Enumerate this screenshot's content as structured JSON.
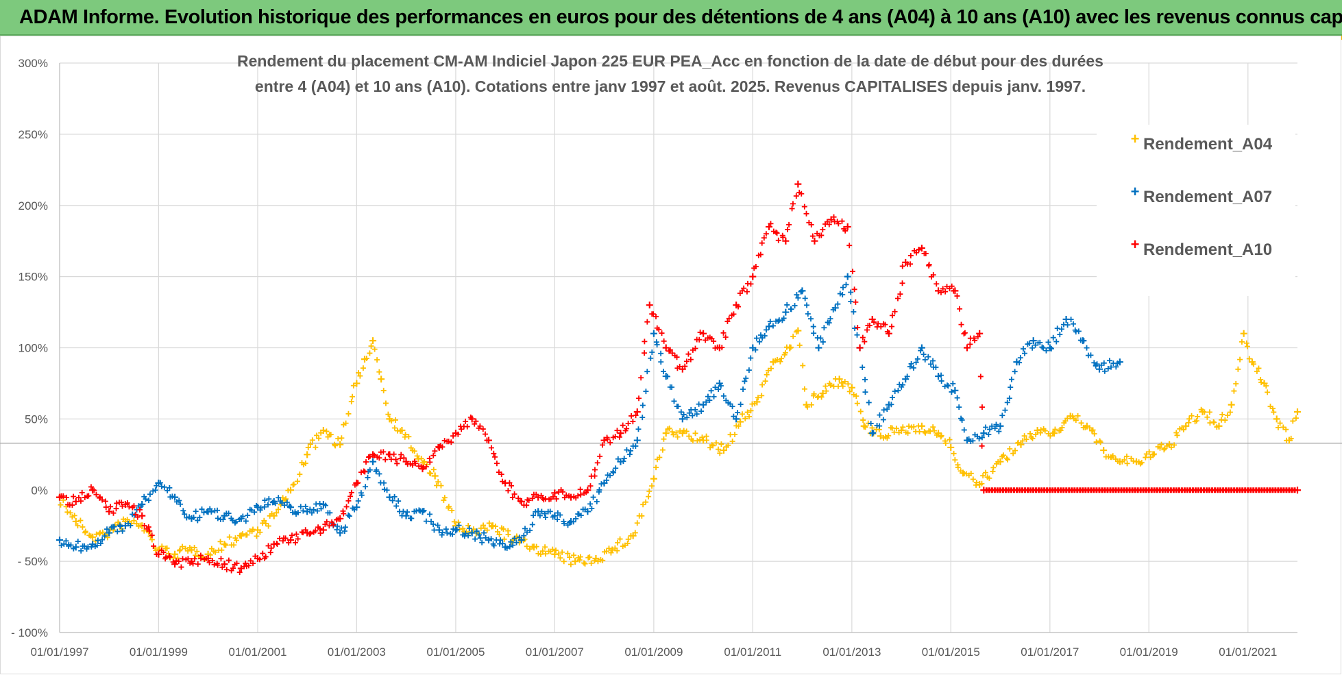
{
  "banner": {
    "title": "ADAM Informe. Evolution historique des performances en euros pour des détentions de 4 ans (A04) à 10 ans (A10) avec les revenus connus capitalisés"
  },
  "chart_data": {
    "type": "scatter",
    "title_lines": [
      "Rendement du placement CM-AM Indiciel Japon 225 EUR PEA_Acc en fonction de la date de début pour des durées",
      "entre 4 (A04) et 10 ans (A10). Cotations entre janv 1997 et août. 2025. Revenus CAPITALISES depuis janv. 1997."
    ],
    "x_tick_labels": [
      "01/01/1997",
      "01/01/1999",
      "01/01/2001",
      "01/01/2003",
      "01/01/2005",
      "01/01/2007",
      "01/01/2009",
      "01/01/2011",
      "01/01/2013",
      "01/01/2015",
      "01/01/2017",
      "01/01/2019",
      "01/01/2021"
    ],
    "xlim": [
      "1997-01-01",
      "2022-01-01"
    ],
    "y_tick_labels": [
      "300%",
      "250%",
      "200%",
      "150%",
      "100%",
      "50%",
      "0%",
      "- 50%",
      "- 100%"
    ],
    "y_ticks": [
      300,
      250,
      200,
      150,
      100,
      50,
      0,
      -50,
      -100
    ],
    "ylim": [
      -100,
      300
    ],
    "reference_line_y": 33,
    "grid": true,
    "legend_position": "top-right",
    "series": [
      {
        "name": "Rendement_A04",
        "color": "#ffc000",
        "points": [
          [
            "1997-01-01",
            -5
          ],
          [
            "1997-05-01",
            -22
          ],
          [
            "1997-09-01",
            -33
          ],
          [
            "1998-01-01",
            -30
          ],
          [
            "1998-05-01",
            -22
          ],
          [
            "1998-09-01",
            -25
          ],
          [
            "1999-01-01",
            -42
          ],
          [
            "1999-05-01",
            -45
          ],
          [
            "1999-09-01",
            -42
          ],
          [
            "2000-01-01",
            -45
          ],
          [
            "2000-05-01",
            -38
          ],
          [
            "2000-09-01",
            -32
          ],
          [
            "2001-01-01",
            -28
          ],
          [
            "2001-05-01",
            -18
          ],
          [
            "2001-09-01",
            0
          ],
          [
            "2002-01-01",
            25
          ],
          [
            "2002-05-01",
            42
          ],
          [
            "2002-09-01",
            32
          ],
          [
            "2003-01-01",
            75
          ],
          [
            "2003-03-01",
            92
          ],
          [
            "2003-05-01",
            105
          ],
          [
            "2003-07-01",
            78
          ],
          [
            "2003-09-01",
            50
          ],
          [
            "2003-12-01",
            42
          ],
          [
            "2004-04-01",
            22
          ],
          [
            "2004-08-01",
            10
          ],
          [
            "2005-01-01",
            -25
          ],
          [
            "2005-06-01",
            -30
          ],
          [
            "2005-10-01",
            -25
          ],
          [
            "2006-03-01",
            -35
          ],
          [
            "2006-08-01",
            -40
          ],
          [
            "2007-01-01",
            -45
          ],
          [
            "2007-06-01",
            -50
          ],
          [
            "2007-11-01",
            -48
          ],
          [
            "2008-03-01",
            -42
          ],
          [
            "2008-08-01",
            -32
          ],
          [
            "2009-01-01",
            8
          ],
          [
            "2009-04-01",
            40
          ],
          [
            "2009-08-01",
            40
          ],
          [
            "2010-01-01",
            35
          ],
          [
            "2010-06-01",
            28
          ],
          [
            "2010-10-01",
            48
          ],
          [
            "2011-02-01",
            62
          ],
          [
            "2011-06-01",
            90
          ],
          [
            "2011-10-01",
            100
          ],
          [
            "2011-12-01",
            112
          ],
          [
            "2012-02-01",
            60
          ],
          [
            "2012-06-01",
            68
          ],
          [
            "2012-10-01",
            78
          ],
          [
            "2013-01-01",
            72
          ],
          [
            "2013-04-01",
            45
          ],
          [
            "2013-08-01",
            38
          ],
          [
            "2014-01-01",
            42
          ],
          [
            "2014-06-01",
            45
          ],
          [
            "2014-10-01",
            40
          ],
          [
            "2015-01-01",
            30
          ],
          [
            "2015-04-01",
            12
          ],
          [
            "2015-08-01",
            4
          ],
          [
            "2016-01-01",
            20
          ],
          [
            "2016-06-01",
            32
          ],
          [
            "2016-10-01",
            42
          ],
          [
            "2017-02-01",
            40
          ],
          [
            "2017-06-01",
            52
          ],
          [
            "2017-10-01",
            45
          ],
          [
            "2018-02-01",
            28
          ],
          [
            "2018-06-01",
            20
          ],
          [
            "2018-10-01",
            20
          ],
          [
            "2019-02-01",
            25
          ],
          [
            "2019-06-01",
            32
          ],
          [
            "2019-10-01",
            45
          ],
          [
            "2020-02-01",
            55
          ],
          [
            "2020-06-01",
            45
          ],
          [
            "2020-09-01",
            60
          ],
          [
            "2020-12-01",
            110
          ],
          [
            "2021-02-01",
            90
          ],
          [
            "2021-05-01",
            75
          ],
          [
            "2021-08-01",
            50
          ],
          [
            "2021-11-01",
            35
          ],
          [
            "2022-01-01",
            55
          ]
        ]
      },
      {
        "name": "Rendement_A07",
        "color": "#0070c0",
        "points": [
          [
            "1997-01-01",
            -35
          ],
          [
            "1997-05-01",
            -40
          ],
          [
            "1997-09-01",
            -38
          ],
          [
            "1998-01-01",
            -30
          ],
          [
            "1998-05-01",
            -25
          ],
          [
            "1998-09-01",
            -10
          ],
          [
            "1999-01-01",
            5
          ],
          [
            "1999-05-01",
            -5
          ],
          [
            "1999-09-01",
            -20
          ],
          [
            "2000-01-01",
            -15
          ],
          [
            "2000-05-01",
            -18
          ],
          [
            "2000-09-01",
            -20
          ],
          [
            "2001-01-01",
            -12
          ],
          [
            "2001-05-01",
            -8
          ],
          [
            "2001-09-01",
            -12
          ],
          [
            "2002-01-01",
            -15
          ],
          [
            "2002-05-01",
            -10
          ],
          [
            "2002-09-01",
            -30
          ],
          [
            "2003-01-01",
            -12
          ],
          [
            "2003-05-01",
            20
          ],
          [
            "2003-09-01",
            -5
          ],
          [
            "2004-01-01",
            -18
          ],
          [
            "2004-05-01",
            -15
          ],
          [
            "2004-09-01",
            -28
          ],
          [
            "2005-01-01",
            -28
          ],
          [
            "2005-05-01",
            -30
          ],
          [
            "2005-09-01",
            -35
          ],
          [
            "2006-01-01",
            -40
          ],
          [
            "2006-05-01",
            -35
          ],
          [
            "2006-09-01",
            -15
          ],
          [
            "2007-01-01",
            -18
          ],
          [
            "2007-05-01",
            -22
          ],
          [
            "2007-09-01",
            -15
          ],
          [
            "2008-01-01",
            5
          ],
          [
            "2008-05-01",
            20
          ],
          [
            "2008-09-01",
            35
          ],
          [
            "2009-01-01",
            110
          ],
          [
            "2009-04-01",
            80
          ],
          [
            "2009-08-01",
            50
          ],
          [
            "2010-01-01",
            60
          ],
          [
            "2010-05-01",
            75
          ],
          [
            "2010-09-01",
            50
          ],
          [
            "2011-01-01",
            100
          ],
          [
            "2011-05-01",
            115
          ],
          [
            "2011-09-01",
            125
          ],
          [
            "2012-01-01",
            140
          ],
          [
            "2012-05-01",
            100
          ],
          [
            "2012-09-01",
            128
          ],
          [
            "2012-12-01",
            150
          ],
          [
            "2013-03-01",
            100
          ],
          [
            "2013-06-01",
            40
          ],
          [
            "2013-10-01",
            60
          ],
          [
            "2014-02-01",
            78
          ],
          [
            "2014-06-01",
            100
          ],
          [
            "2014-10-01",
            80
          ],
          [
            "2015-02-01",
            70
          ],
          [
            "2015-05-01",
            35
          ],
          [
            "2015-09-01",
            40
          ],
          [
            "2016-01-01",
            45
          ],
          [
            "2016-05-01",
            90
          ],
          [
            "2016-09-01",
            105
          ],
          [
            "2017-01-01",
            100
          ],
          [
            "2017-05-01",
            120
          ],
          [
            "2017-09-01",
            105
          ],
          [
            "2018-01-01",
            85
          ],
          [
            "2018-06-01",
            90
          ]
        ]
      },
      {
        "name": "Rendement_A10",
        "color": "#ff0000",
        "points": [
          [
            "1997-01-01",
            -5
          ],
          [
            "1997-05-01",
            -8
          ],
          [
            "1997-09-01",
            0
          ],
          [
            "1998-01-01",
            -15
          ],
          [
            "1998-05-01",
            -10
          ],
          [
            "1998-09-01",
            -18
          ],
          [
            "1999-01-01",
            -45
          ],
          [
            "1999-05-01",
            -52
          ],
          [
            "1999-09-01",
            -50
          ],
          [
            "2000-01-01",
            -48
          ],
          [
            "2000-05-01",
            -52
          ],
          [
            "2000-09-01",
            -55
          ],
          [
            "2001-01-01",
            -48
          ],
          [
            "2001-05-01",
            -38
          ],
          [
            "2001-09-01",
            -35
          ],
          [
            "2002-01-01",
            -30
          ],
          [
            "2002-05-01",
            -28
          ],
          [
            "2002-09-01",
            -20
          ],
          [
            "2003-01-01",
            5
          ],
          [
            "2003-05-01",
            25
          ],
          [
            "2003-09-01",
            25
          ],
          [
            "2004-01-01",
            20
          ],
          [
            "2004-05-01",
            15
          ],
          [
            "2004-09-01",
            30
          ],
          [
            "2005-01-01",
            40
          ],
          [
            "2005-05-01",
            50
          ],
          [
            "2005-09-01",
            35
          ],
          [
            "2006-01-01",
            5
          ],
          [
            "2006-05-01",
            -8
          ],
          [
            "2006-09-01",
            -5
          ],
          [
            "2007-01-01",
            -2
          ],
          [
            "2007-05-01",
            -5
          ],
          [
            "2007-09-01",
            0
          ],
          [
            "2008-01-01",
            35
          ],
          [
            "2008-05-01",
            40
          ],
          [
            "2008-09-01",
            55
          ],
          [
            "2008-12-01",
            130
          ],
          [
            "2009-04-01",
            100
          ],
          [
            "2009-08-01",
            85
          ],
          [
            "2010-01-01",
            110
          ],
          [
            "2010-05-01",
            100
          ],
          [
            "2010-09-01",
            130
          ],
          [
            "2011-01-01",
            150
          ],
          [
            "2011-05-01",
            185
          ],
          [
            "2011-09-01",
            175
          ],
          [
            "2011-12-01",
            215
          ],
          [
            "2012-04-01",
            175
          ],
          [
            "2012-08-01",
            190
          ],
          [
            "2012-12-01",
            185
          ],
          [
            "2013-03-01",
            100
          ],
          [
            "2013-06-01",
            120
          ],
          [
            "2013-10-01",
            110
          ],
          [
            "2014-02-01",
            160
          ],
          [
            "2014-06-01",
            170
          ],
          [
            "2014-10-01",
            140
          ],
          [
            "2015-02-01",
            140
          ],
          [
            "2015-05-01",
            100
          ],
          [
            "2015-08-01",
            110
          ],
          [
            "2015-09-01",
            0
          ],
          [
            "2022-01-01",
            0
          ]
        ]
      }
    ]
  }
}
